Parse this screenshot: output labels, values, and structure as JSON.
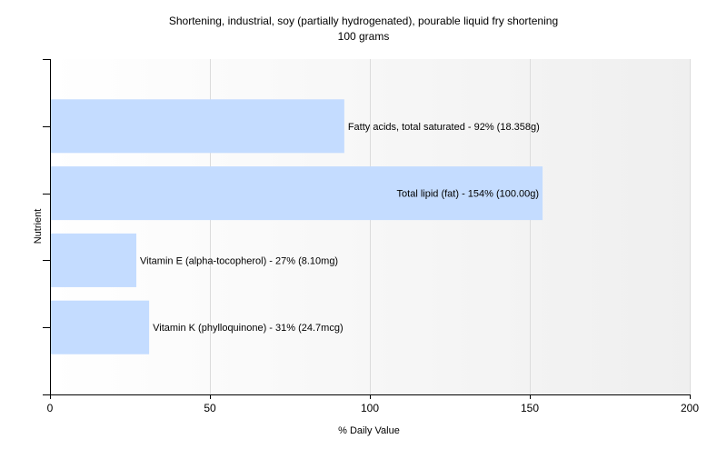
{
  "chart_data": {
    "type": "bar",
    "orientation": "horizontal",
    "title": "Shortening, industrial, soy (partially hydrogenated), pourable liquid fry shortening",
    "subtitle": "100 grams",
    "xlabel": "% Daily Value",
    "ylabel": "Nutrient",
    "xlim": [
      0,
      200
    ],
    "xticks": [
      0,
      50,
      100,
      150,
      200
    ],
    "grid": true,
    "bar_color": "#c4dcff",
    "bars": [
      {
        "value": 92,
        "label": "Fatty acids, total saturated - 92% (18.358g)"
      },
      {
        "value": 154,
        "label": "Total lipid (fat) - 154% (100.00g)"
      },
      {
        "value": 27,
        "label": "Vitamin E (alpha-tocopherol) - 27% (8.10mg)"
      },
      {
        "value": 31,
        "label": "Vitamin K (phylloquinone) - 31% (24.7mcg)"
      }
    ]
  }
}
